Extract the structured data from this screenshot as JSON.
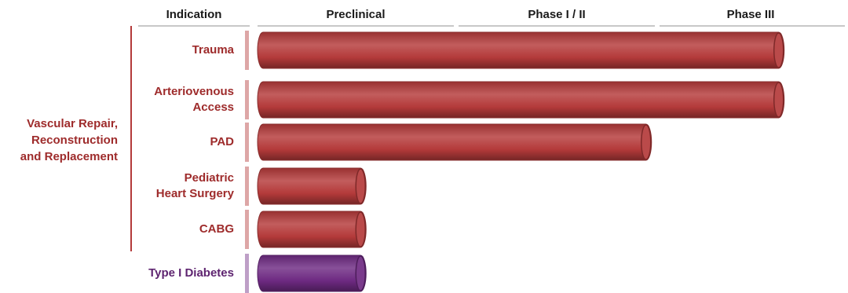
{
  "header": {
    "indication": "Indication",
    "phases": [
      "Preclinical",
      "Phase I / II",
      "Phase III"
    ]
  },
  "group": {
    "label_lines": [
      "Vascular Repair,",
      "Reconstruction",
      "and Replacement"
    ],
    "color": "#9e2b2b"
  },
  "chart_data": {
    "type": "bar",
    "orientation": "horizontal",
    "stage_axis": [
      "Preclinical",
      "Phase I / II",
      "Phase III"
    ],
    "categories": [
      "Trauma",
      "Arteriovenous Access",
      "PAD",
      "Pediatric Heart Surgery",
      "CABG",
      "Type I Diabetes"
    ],
    "category_lines": [
      [
        "Trauma"
      ],
      [
        "Arteriovenous",
        "Access"
      ],
      [
        "PAD"
      ],
      [
        "Pediatric",
        "Heart Surgery"
      ],
      [
        "CABG"
      ],
      [
        "Type I Diabetes"
      ]
    ],
    "values": [
      2.62,
      2.62,
      1.96,
      0.54,
      0.54,
      0.54
    ],
    "xlim": [
      0,
      3
    ],
    "colors": [
      "#b43a3a",
      "#b43a3a",
      "#b43a3a",
      "#b43a3a",
      "#b43a3a",
      "#6e2a82"
    ],
    "label_colors": [
      "#9e2b2b",
      "#9e2b2b",
      "#9e2b2b",
      "#9e2b2b",
      "#9e2b2b",
      "#5e2470"
    ],
    "grid": false,
    "legend": "none"
  }
}
